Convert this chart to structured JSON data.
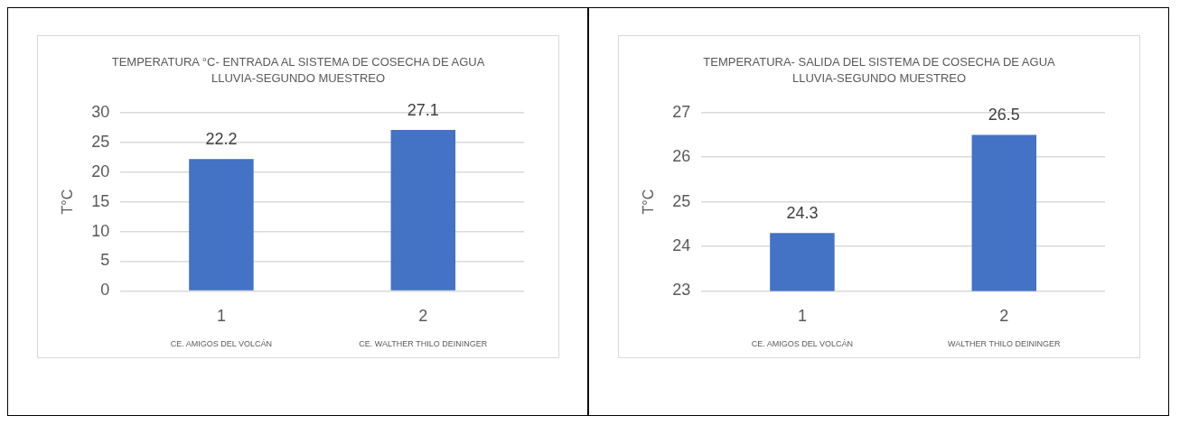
{
  "chart_data": [
    {
      "type": "bar",
      "title": "TEMPERATURA °C- ENTRADA AL SISTEMA DE COSECHA DE AGUA LLUVIA-SEGUNDO MUESTREO",
      "ylabel": "T°C",
      "categories": [
        "1",
        "2"
      ],
      "values": [
        22.2,
        27.1
      ],
      "color": "#4472c4",
      "ylim": [
        0,
        30
      ],
      "yticks": [
        0,
        5,
        10,
        15,
        20,
        25,
        30
      ],
      "grid": "y",
      "data_labels": true,
      "annotations": [
        "CE. AMIGOS DEL VOLCÁN",
        "CE. WALTHER THILO DEININGER"
      ]
    },
    {
      "type": "bar",
      "title": "TEMPERATURA- SALIDA DEL SISTEMA DE COSECHA DE AGUA LLUVIA-SEGUNDO MUESTREO",
      "ylabel": "T°C",
      "categories": [
        "1",
        "2"
      ],
      "values": [
        24.3,
        26.5
      ],
      "color": "#4472c4",
      "ylim": [
        23,
        27
      ],
      "yticks": [
        23,
        24,
        25,
        26,
        27
      ],
      "grid": "y",
      "data_labels": true,
      "annotations": [
        "CE. AMIGOS DEL VOLCÁN",
        "WALTHER THILO DEININGER"
      ]
    }
  ]
}
